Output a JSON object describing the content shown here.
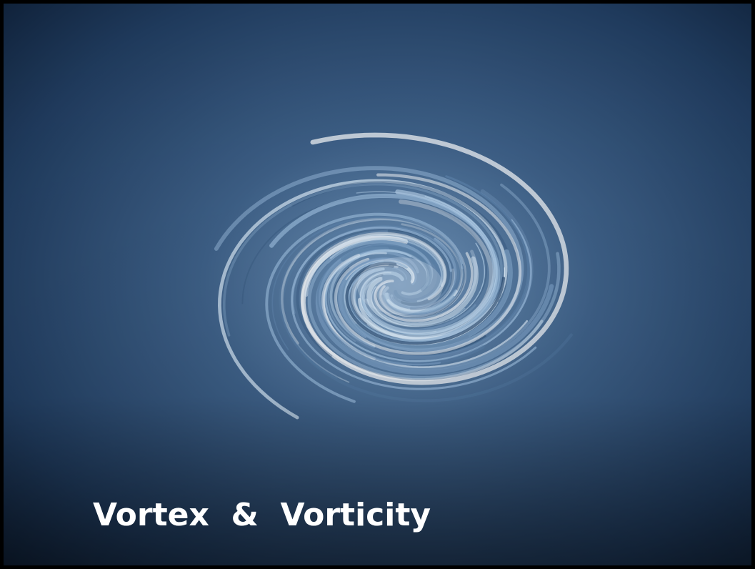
{
  "title": "Vortex  &  Vorticity"
}
